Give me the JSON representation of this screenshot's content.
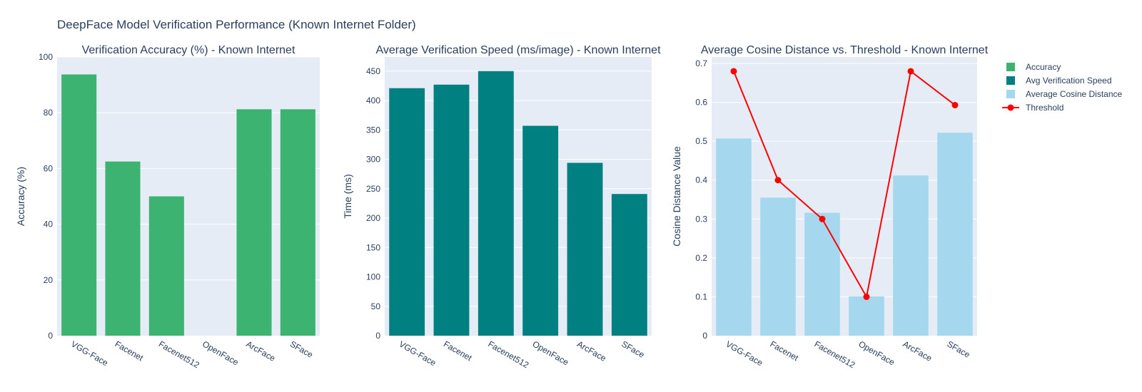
{
  "figure": {
    "title": "DeepFace Model Verification Performance (Known Internet Folder)"
  },
  "chart_data": [
    {
      "type": "bar",
      "title": "Verification Accuracy (%) - Known Internet",
      "xlabel": "",
      "ylabel": "Accuracy (%)",
      "categories": [
        "VGG-Face",
        "Facenet",
        "Facenet512",
        "OpenFace",
        "ArcFace",
        "SFace"
      ],
      "series": [
        {
          "name": "Accuracy",
          "values": [
            93.75,
            62.5,
            50,
            0,
            81.25,
            81.25
          ],
          "color": "#3cb371"
        }
      ],
      "ylim": [
        0,
        100
      ],
      "yticks": [
        0,
        20,
        40,
        60,
        80,
        100
      ],
      "grid": true
    },
    {
      "type": "bar",
      "title": "Average Verification Speed (ms/image) - Known Internet",
      "xlabel": "",
      "ylabel": "Time (ms)",
      "categories": [
        "VGG-Face",
        "Facenet",
        "Facenet512",
        "OpenFace",
        "ArcFace",
        "SFace"
      ],
      "series": [
        {
          "name": "Avg Verification Speed",
          "values": [
            421,
            427,
            450,
            357,
            294,
            241
          ],
          "color": "#008080"
        }
      ],
      "ylim": [
        0,
        474
      ],
      "yticks": [
        0,
        50,
        100,
        150,
        200,
        250,
        300,
        350,
        400,
        450
      ],
      "grid": true
    },
    {
      "type": "bar",
      "title": "Average Cosine Distance vs. Threshold - Known Internet",
      "xlabel": "",
      "ylabel": "Cosine Distance Value",
      "categories": [
        "VGG-Face",
        "Facenet",
        "Facenet512",
        "OpenFace",
        "ArcFace",
        "SFace"
      ],
      "series": [
        {
          "name": "Average Cosine Distance",
          "type": "bar",
          "values": [
            0.507,
            0.355,
            0.316,
            0.101,
            0.412,
            0.522
          ],
          "color": "#a5d8ef"
        },
        {
          "name": "Threshold",
          "type": "line",
          "values": [
            0.68,
            0.4,
            0.3,
            0.1,
            0.68,
            0.593
          ],
          "color": "#ff0000"
        }
      ],
      "ylim": [
        0,
        0.7166
      ],
      "yticks": [
        0,
        0.1,
        0.2,
        0.3,
        0.4,
        0.5,
        0.6,
        0.7
      ],
      "grid": true
    }
  ],
  "legend": {
    "position": "top-right",
    "items": [
      {
        "label": "Accuracy",
        "symbol": "square",
        "color": "#3cb371"
      },
      {
        "label": "Avg Verification Speed",
        "symbol": "square",
        "color": "#008080"
      },
      {
        "label": "Average Cosine Distance",
        "symbol": "square",
        "color": "#a5d8ef"
      },
      {
        "label": "Threshold",
        "symbol": "line-marker",
        "color": "#ff0000"
      }
    ]
  },
  "colors": {
    "plot_background": "#e5ecf6",
    "gridline": "#ffffff",
    "text": "#2a3f5f"
  }
}
